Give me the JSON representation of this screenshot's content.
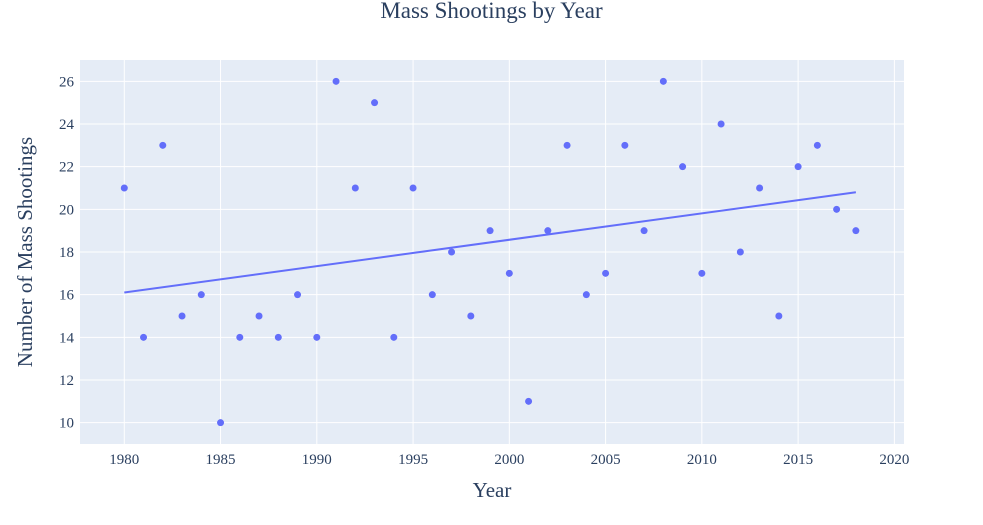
{
  "chart_data": {
    "type": "scatter",
    "title": "Mass Shootings by Year",
    "xlabel": "Year",
    "ylabel": "Number of Mass Shootings",
    "xlim": [
      1977.7,
      2020.5
    ],
    "ylim": [
      9,
      27
    ],
    "xticks": [
      1980,
      1985,
      1990,
      1995,
      2000,
      2005,
      2010,
      2015,
      2020
    ],
    "yticks": [
      10,
      12,
      14,
      16,
      18,
      20,
      22,
      24,
      26
    ],
    "grid": true,
    "legend": "none",
    "colors": {
      "plot_background": "#e5ecf6",
      "grid": "#ffffff",
      "marker": "#636efa",
      "trendline": "#636efa"
    },
    "series": [
      {
        "values": [
          {
            "x": 1980,
            "y": 21
          },
          {
            "x": 1981,
            "y": 14
          },
          {
            "x": 1982,
            "y": 23
          },
          {
            "x": 1983,
            "y": 15
          },
          {
            "x": 1984,
            "y": 16
          },
          {
            "x": 1985,
            "y": 10
          },
          {
            "x": 1986,
            "y": 14
          },
          {
            "x": 1987,
            "y": 15
          },
          {
            "x": 1988,
            "y": 14
          },
          {
            "x": 1989,
            "y": 16
          },
          {
            "x": 1990,
            "y": 14
          },
          {
            "x": 1991,
            "y": 26
          },
          {
            "x": 1992,
            "y": 21
          },
          {
            "x": 1993,
            "y": 25
          },
          {
            "x": 1994,
            "y": 14
          },
          {
            "x": 1995,
            "y": 21
          },
          {
            "x": 1996,
            "y": 16
          },
          {
            "x": 1997,
            "y": 18
          },
          {
            "x": 1998,
            "y": 15
          },
          {
            "x": 1999,
            "y": 19
          },
          {
            "x": 2000,
            "y": 17
          },
          {
            "x": 2001,
            "y": 11
          },
          {
            "x": 2002,
            "y": 19
          },
          {
            "x": 2003,
            "y": 23
          },
          {
            "x": 2004,
            "y": 16
          },
          {
            "x": 2005,
            "y": 17
          },
          {
            "x": 2006,
            "y": 23
          },
          {
            "x": 2007,
            "y": 19
          },
          {
            "x": 2008,
            "y": 26
          },
          {
            "x": 2009,
            "y": 22
          },
          {
            "x": 2010,
            "y": 17
          },
          {
            "x": 2011,
            "y": 24
          },
          {
            "x": 2012,
            "y": 18
          },
          {
            "x": 2013,
            "y": 21
          },
          {
            "x": 2014,
            "y": 15
          },
          {
            "x": 2015,
            "y": 22
          },
          {
            "x": 2016,
            "y": 23
          },
          {
            "x": 2017,
            "y": 20
          },
          {
            "x": 2018,
            "y": 19
          }
        ]
      }
    ],
    "trendline": {
      "type": "linear",
      "x": [
        1980,
        2018
      ],
      "y": [
        16.1,
        20.8
      ]
    }
  }
}
